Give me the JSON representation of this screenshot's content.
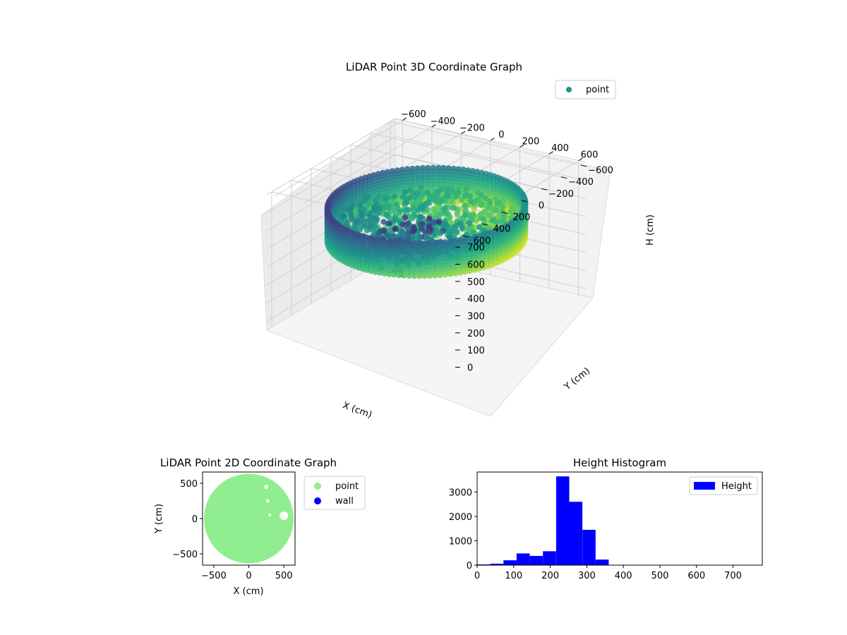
{
  "chart_data": [
    {
      "type": "scatter",
      "subtype": "3d",
      "title": "LiDAR Point 3D Coordinate Graph",
      "xlabel": "X (cm)",
      "ylabel": "Y (cm)",
      "zlabel": "H (cm)",
      "x_ticks": [
        "−600",
        "−400",
        "−200",
        "0",
        "200",
        "400",
        "600"
      ],
      "y_ticks": [
        "−600",
        "−400",
        "−200",
        "0",
        "200",
        "400",
        "600"
      ],
      "z_ticks": [
        "0",
        "100",
        "200",
        "300",
        "400",
        "500",
        "600",
        "700"
      ],
      "xlim": [
        -650,
        650
      ],
      "ylim": [
        -650,
        650
      ],
      "zlim": [
        0,
        750
      ],
      "z_inverted": true,
      "colormap": "viridis",
      "legend": {
        "entries": [
          {
            "label": "point",
            "color": "#21918c"
          }
        ],
        "position": "top-right"
      },
      "shape": {
        "type": "cylinder-wall",
        "radius": 560,
        "height_range": [
          150,
          330
        ]
      },
      "grid": true
    },
    {
      "type": "scatter",
      "title": "LiDAR Point 2D Coordinate Graph",
      "xlabel": "X (cm)",
      "ylabel": "Y (cm)",
      "x_ticks": [
        "−500",
        "0",
        "500"
      ],
      "y_ticks": [
        "−500",
        "0",
        "500"
      ],
      "xlim": [
        -660,
        660
      ],
      "ylim": [
        -660,
        660
      ],
      "shape": {
        "type": "disk",
        "radius": 640
      },
      "legend": {
        "entries": [
          {
            "label": "point",
            "color": "#90ee90"
          },
          {
            "label": "wall",
            "color": "#0000ff"
          }
        ],
        "position": "outside-right"
      }
    },
    {
      "type": "bar",
      "subtype": "histogram",
      "title": "Height Histogram",
      "xlim": [
        0,
        780
      ],
      "ylim": [
        0,
        3820
      ],
      "x_ticks": [
        "0",
        "100",
        "200",
        "300",
        "400",
        "500",
        "600",
        "700"
      ],
      "y_ticks": [
        "0",
        "1000",
        "2000",
        "3000"
      ],
      "bin_width": 36,
      "bins": [
        0,
        36,
        72,
        108,
        144,
        180,
        216,
        252,
        288,
        324
      ],
      "values": [
        30,
        60,
        200,
        480,
        380,
        570,
        3640,
        2600,
        1450,
        230
      ],
      "series": [
        {
          "name": "Height",
          "color": "#0000ff"
        }
      ],
      "legend": {
        "position": "top-right"
      }
    }
  ]
}
